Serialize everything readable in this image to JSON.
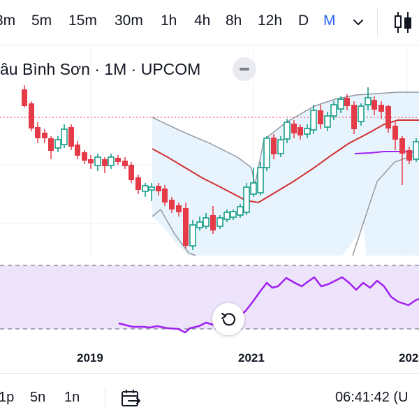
{
  "toolbar": {
    "intervals": [
      {
        "id": "3m",
        "label": "3m",
        "active": false
      },
      {
        "id": "5m",
        "label": "5m",
        "active": false
      },
      {
        "id": "15m",
        "label": "15m",
        "active": false
      },
      {
        "id": "30m",
        "label": "30m",
        "active": false
      },
      {
        "id": "1h",
        "label": "1h",
        "active": false
      },
      {
        "id": "4h",
        "label": "4h",
        "active": false
      },
      {
        "id": "8h",
        "label": "8h",
        "active": false
      },
      {
        "id": "12h",
        "label": "12h",
        "active": false
      },
      {
        "id": "D",
        "label": "D",
        "active": false
      },
      {
        "id": "M",
        "label": "M",
        "active": true
      }
    ],
    "more_icon": "chevron-down-icon",
    "chart_type_icon": "candlestick-icon"
  },
  "legend": {
    "title": "âu Bình Sơn · 1M · UPCOM",
    "collapse_icon": "minus-icon"
  },
  "time_axis": {
    "labels": [
      "2019",
      "2021",
      "202"
    ]
  },
  "bottom_bar": {
    "ranges": [
      "1p",
      "5n",
      "1n"
    ],
    "goto_icon": "calendar-goto-icon",
    "time": "06:41:42 (U"
  },
  "reset_icon": "reset-chart-icon",
  "colors": {
    "accent": "#2962ff",
    "up": "#089981",
    "down": "#e53a48",
    "ma": "#d12f2f",
    "band": "#9598a1",
    "rsi": "#a020f0",
    "rsi_bg": "#ede3fb"
  }
}
